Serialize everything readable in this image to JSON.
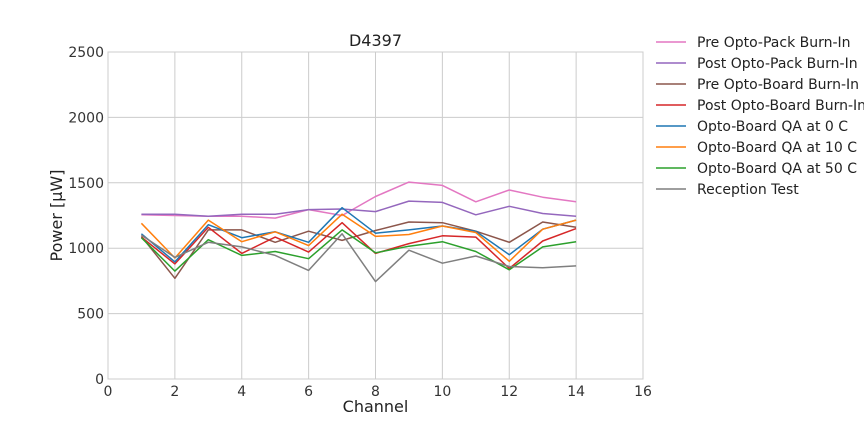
{
  "chart_data": {
    "type": "line",
    "title": "D4397",
    "xlabel": "Channel",
    "ylabel": "Power [μW]",
    "xlim": [
      0,
      16
    ],
    "ylim": [
      0,
      2500
    ],
    "xticks": [
      0,
      2,
      4,
      6,
      8,
      10,
      12,
      14,
      16
    ],
    "yticks": [
      0,
      500,
      1000,
      1500,
      2000,
      2500
    ],
    "grid": true,
    "legend_position": "outside-right",
    "x": [
      1,
      2,
      3,
      4,
      5,
      6,
      7,
      8,
      9,
      10,
      11,
      12,
      13,
      14
    ],
    "series": [
      {
        "name": "Pre Opto-Pack Burn-In",
        "color": "#e377c2",
        "values": [
          1255,
          1250,
          1245,
          1245,
          1230,
          1295,
          1250,
          1395,
          1505,
          1480,
          1355,
          1445,
          1390,
          1355
        ]
      },
      {
        "name": "Post Opto-Pack Burn-In",
        "color": "#9467bd",
        "values": [
          1260,
          1260,
          1245,
          1260,
          1260,
          1295,
          1300,
          1280,
          1360,
          1350,
          1255,
          1320,
          1265,
          1245
        ]
      },
      {
        "name": "Pre Opto-Board Burn-In",
        "color": "#8c564b",
        "values": [
          1090,
          770,
          1140,
          1140,
          1045,
          1130,
          1060,
          1135,
          1200,
          1195,
          1130,
          1045,
          1200,
          1160
        ]
      },
      {
        "name": "Post Opto-Board Burn-In",
        "color": "#d62728",
        "values": [
          1085,
          880,
          1160,
          960,
          1085,
          970,
          1195,
          960,
          1035,
          1095,
          1085,
          845,
          1055,
          1150
        ]
      },
      {
        "name": "Opto-Board QA at 0 C",
        "color": "#1f77b4",
        "values": [
          1110,
          895,
          1180,
          1080,
          1125,
          1045,
          1310,
          1115,
          1140,
          1170,
          1130,
          950,
          1145,
          1215
        ]
      },
      {
        "name": "Opto-Board QA at 10 C",
        "color": "#ff7f0e",
        "values": [
          1190,
          925,
          1215,
          1050,
          1125,
          1020,
          1260,
          1090,
          1105,
          1170,
          1120,
          900,
          1145,
          1215
        ]
      },
      {
        "name": "Opto-Board QA at 50 C",
        "color": "#2ca02c",
        "values": [
          1080,
          825,
          1065,
          945,
          975,
          920,
          1140,
          965,
          1015,
          1050,
          975,
          835,
          1010,
          1050
        ]
      },
      {
        "name": "Reception Test",
        "color": "#7f7f7f",
        "values": [
          1100,
          930,
          1045,
          1010,
          945,
          830,
          1110,
          745,
          985,
          885,
          940,
          860,
          850,
          865
        ]
      }
    ]
  }
}
